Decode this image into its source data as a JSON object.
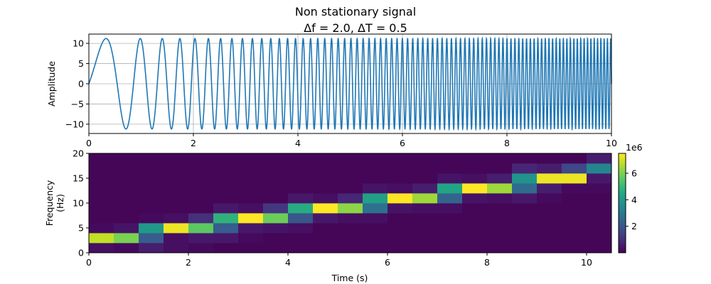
{
  "chart_data": [
    {
      "type": "line",
      "title": "Non stationary signal",
      "subtitle": "Δf = 2.0, ΔT = 0.5",
      "ylabel": "Amplitude",
      "xlabel": "",
      "xlim": [
        0,
        10
      ],
      "ylim": [
        -12.3,
        12.3
      ],
      "xticks": [
        0,
        2,
        4,
        6,
        8,
        10
      ],
      "yticks": [
        -10,
        -5,
        0,
        5,
        10
      ],
      "grid": true,
      "series": [
        {
          "amplitude": 11.2,
          "frequency_start_hz": 0.5,
          "frequency_end_hz": 16.2,
          "color": "#1f77b4"
        }
      ]
    },
    {
      "type": "heatmap",
      "xlabel": "Time (s)",
      "ylabel": "Frequency\n(Hz)",
      "xlim": [
        0,
        10.5
      ],
      "ylim": [
        0,
        20
      ],
      "xticks": [
        0,
        2,
        4,
        6,
        8,
        10
      ],
      "yticks": [
        0,
        5,
        10,
        15,
        20
      ],
      "x_bin_width": 0.5,
      "y_bin_height": 2,
      "colormap": "viridis",
      "vmin": 0,
      "vmax": 7.5,
      "colorbar_ticks": [
        2,
        4,
        6
      ],
      "colorbar_offset_label": "1e6",
      "cells": [
        [
          0.3,
          6.8,
          0.2,
          0.1,
          0.1,
          0.1,
          0.1,
          0.1,
          0.1,
          0.1
        ],
        [
          0.2,
          6.0,
          0.4,
          0.1,
          0.1,
          0.1,
          0.1,
          0.1,
          0.1,
          0.1
        ],
        [
          0.6,
          2.2,
          4.0,
          0.2,
          0.1,
          0.1,
          0.1,
          0.1,
          0.1,
          0.1
        ],
        [
          0.3,
          0.3,
          7.3,
          0.3,
          0.1,
          0.1,
          0.1,
          0.1,
          0.1,
          0.1
        ],
        [
          0.2,
          0.5,
          5.6,
          1.0,
          0.1,
          0.1,
          0.1,
          0.1,
          0.1,
          0.1
        ],
        [
          0.1,
          0.5,
          2.2,
          4.8,
          0.5,
          0.1,
          0.1,
          0.1,
          0.1,
          0.1
        ],
        [
          0.1,
          0.2,
          0.5,
          7.5,
          0.3,
          0.1,
          0.1,
          0.1,
          0.1,
          0.1
        ],
        [
          0.1,
          0.1,
          0.4,
          5.8,
          1.2,
          0.1,
          0.1,
          0.1,
          0.1,
          0.1
        ],
        [
          0.1,
          0.1,
          0.3,
          2.0,
          4.6,
          0.5,
          0.1,
          0.1,
          0.1,
          0.1
        ],
        [
          0.1,
          0.1,
          0.1,
          0.5,
          7.5,
          0.3,
          0.1,
          0.1,
          0.1,
          0.1
        ],
        [
          0.1,
          0.1,
          0.1,
          0.3,
          6.2,
          0.8,
          0.1,
          0.1,
          0.1,
          0.1
        ],
        [
          0.1,
          0.1,
          0.1,
          0.3,
          2.8,
          4.2,
          0.4,
          0.1,
          0.1,
          0.1
        ],
        [
          0.1,
          0.1,
          0.1,
          0.1,
          0.4,
          7.5,
          0.3,
          0.1,
          0.1,
          0.1
        ],
        [
          0.1,
          0.1,
          0.1,
          0.1,
          0.3,
          6.4,
          0.6,
          0.1,
          0.1,
          0.1
        ],
        [
          0.1,
          0.1,
          0.1,
          0.1,
          0.3,
          2.4,
          4.4,
          0.4,
          0.1,
          0.1
        ],
        [
          0.1,
          0.1,
          0.1,
          0.1,
          0.1,
          0.4,
          7.5,
          0.3,
          0.1,
          0.1
        ],
        [
          0.1,
          0.1,
          0.1,
          0.1,
          0.1,
          0.3,
          6.4,
          0.6,
          0.1,
          0.1
        ],
        [
          0.1,
          0.1,
          0.1,
          0.1,
          0.1,
          0.5,
          2.6,
          3.8,
          0.8,
          0.1
        ],
        [
          0.1,
          0.1,
          0.1,
          0.1,
          0.1,
          0.2,
          0.6,
          7.3,
          0.6,
          0.1
        ],
        [
          0.1,
          0.1,
          0.1,
          0.1,
          0.1,
          0.1,
          0.2,
          7.3,
          1.6,
          0.1
        ],
        [
          0.1,
          0.1,
          0.1,
          0.1,
          0.1,
          0.1,
          0.2,
          0.5,
          3.4,
          0.6
        ]
      ]
    }
  ]
}
